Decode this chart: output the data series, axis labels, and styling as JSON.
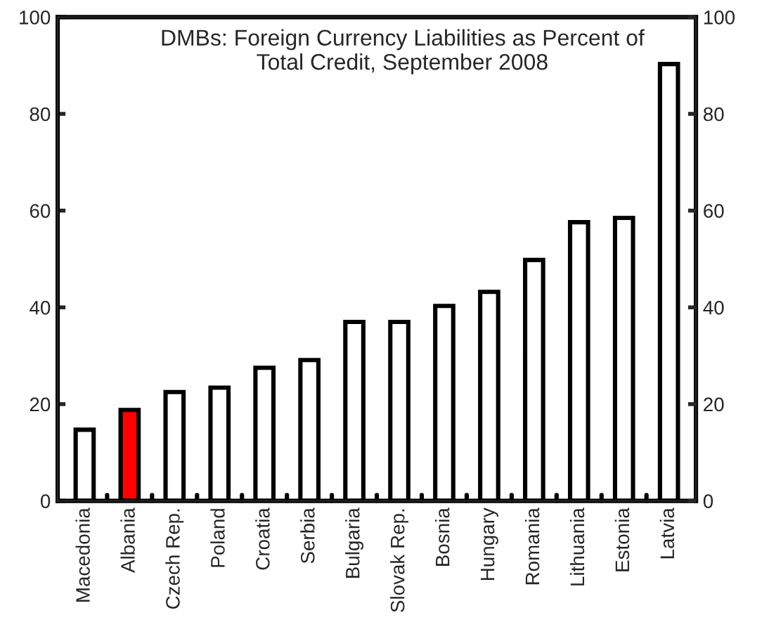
{
  "chart_data": {
    "type": "bar",
    "title": "DMBs: Foreign Currency Liabilities as Percent of\nTotal Credit, September 2008",
    "categories": [
      "Macedonia",
      "Albania",
      "Czech Rep.",
      "Poland",
      "Croatia",
      "Serbia",
      "Bulgaria",
      "Slovak Rep.",
      "Bosnia",
      "Hungary",
      "Romania",
      "Lithuania",
      "Estonia",
      "Latvia"
    ],
    "values": [
      14.7,
      18.8,
      22.5,
      23.4,
      27.5,
      29.1,
      37.0,
      37.0,
      40.3,
      43.2,
      49.8,
      57.6,
      58.5,
      90.3
    ],
    "colors": [
      "#ffffff",
      "#ff0000",
      "#ffffff",
      "#ffffff",
      "#ffffff",
      "#ffffff",
      "#ffffff",
      "#ffffff",
      "#ffffff",
      "#ffffff",
      "#ffffff",
      "#ffffff",
      "#ffffff",
      "#ffffff"
    ],
    "ylim": [
      0,
      100
    ],
    "yticks": [
      0,
      20,
      40,
      60,
      80,
      100
    ],
    "y2lim": [
      0,
      100
    ],
    "y2ticks": [
      0,
      20,
      40,
      60,
      80,
      100
    ],
    "grid": false,
    "legend": false
  }
}
